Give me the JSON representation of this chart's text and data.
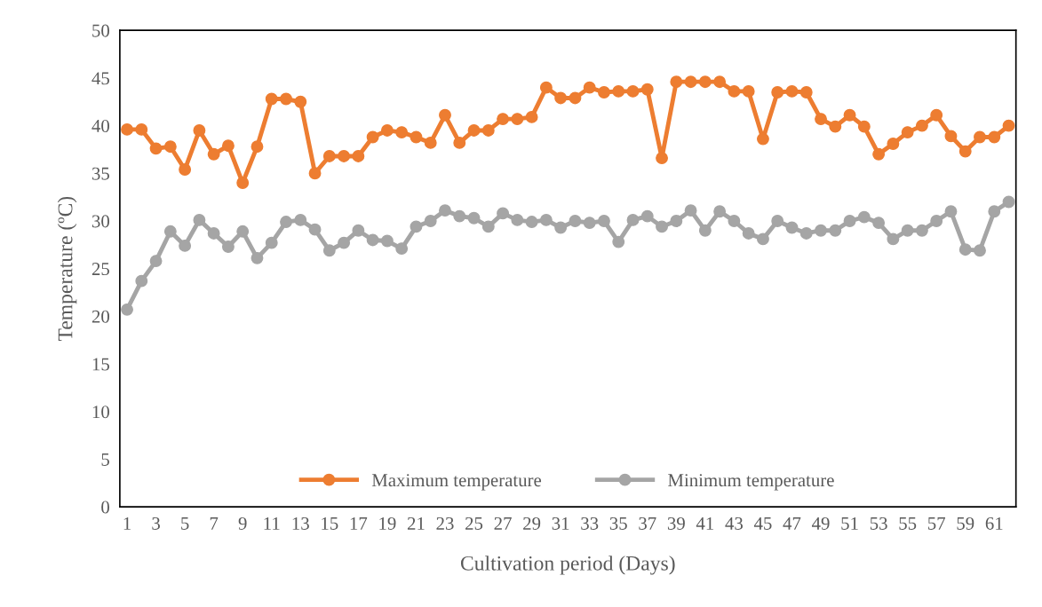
{
  "chart_data": {
    "type": "line",
    "xlabel": "Cultivation period (Days)",
    "ylabel": "Temperature (ºC)",
    "categories": [
      "1",
      null,
      "3",
      null,
      "5",
      null,
      "7",
      null,
      "9",
      null,
      "11",
      null,
      "13",
      null,
      "15",
      null,
      "17",
      null,
      "19",
      null,
      "21",
      null,
      "23",
      null,
      "25",
      null,
      "27",
      null,
      "29",
      null,
      "31",
      null,
      "33",
      null,
      "35",
      null,
      "37",
      null,
      "39",
      null,
      "41",
      null,
      "43",
      null,
      "45",
      null,
      "47",
      null,
      "49",
      null,
      "51",
      null,
      "53",
      null,
      "55",
      null,
      "57",
      null,
      "59",
      null,
      "61",
      null
    ],
    "series": [
      {
        "name": "Maximum temperature",
        "color": "#ed7d31",
        "values": [
          39.6,
          39.6,
          37.6,
          37.8,
          35.4,
          39.5,
          37.0,
          37.9,
          34.0,
          37.8,
          42.8,
          42.8,
          42.5,
          35.0,
          36.8,
          36.8,
          36.8,
          38.8,
          39.5,
          39.3,
          38.8,
          38.2,
          41.1,
          38.2,
          39.5,
          39.5,
          40.7,
          40.7,
          40.9,
          44.0,
          42.9,
          42.9,
          44.0,
          43.5,
          43.6,
          43.6,
          43.8,
          36.6,
          44.6,
          44.6,
          44.6,
          44.6,
          43.6,
          43.6,
          38.6,
          43.5,
          43.6,
          43.5,
          40.7,
          39.9,
          41.1,
          39.9,
          37.0,
          38.1,
          39.3,
          40.0,
          41.1,
          38.9,
          37.3,
          38.8,
          38.8,
          40.0
        ]
      },
      {
        "name": "Minimum temperature",
        "color": "#a5a5a5",
        "values": [
          20.7,
          23.7,
          25.8,
          28.9,
          27.4,
          30.1,
          28.7,
          27.3,
          28.9,
          26.1,
          27.7,
          29.9,
          30.1,
          29.1,
          26.9,
          27.7,
          29.0,
          28.0,
          27.9,
          27.1,
          29.4,
          30.0,
          31.1,
          30.5,
          30.3,
          29.4,
          30.8,
          30.1,
          29.9,
          30.1,
          29.3,
          30.0,
          29.8,
          30.0,
          27.8,
          30.1,
          30.5,
          29.4,
          30.0,
          31.1,
          29.0,
          31.0,
          30.0,
          28.7,
          28.1,
          30.0,
          29.3,
          28.7,
          29.0,
          29.0,
          30.0,
          30.4,
          29.8,
          28.1,
          29.0,
          29.0,
          30.0,
          31.0,
          27.0,
          26.9,
          31.0,
          32.0
        ]
      }
    ],
    "ylim": [
      0,
      50
    ],
    "yticks": [
      0,
      5,
      10,
      15,
      20,
      25,
      30,
      35,
      40,
      45,
      50
    ],
    "legend": "bottom",
    "marker": "circle",
    "line_style": "solid"
  }
}
